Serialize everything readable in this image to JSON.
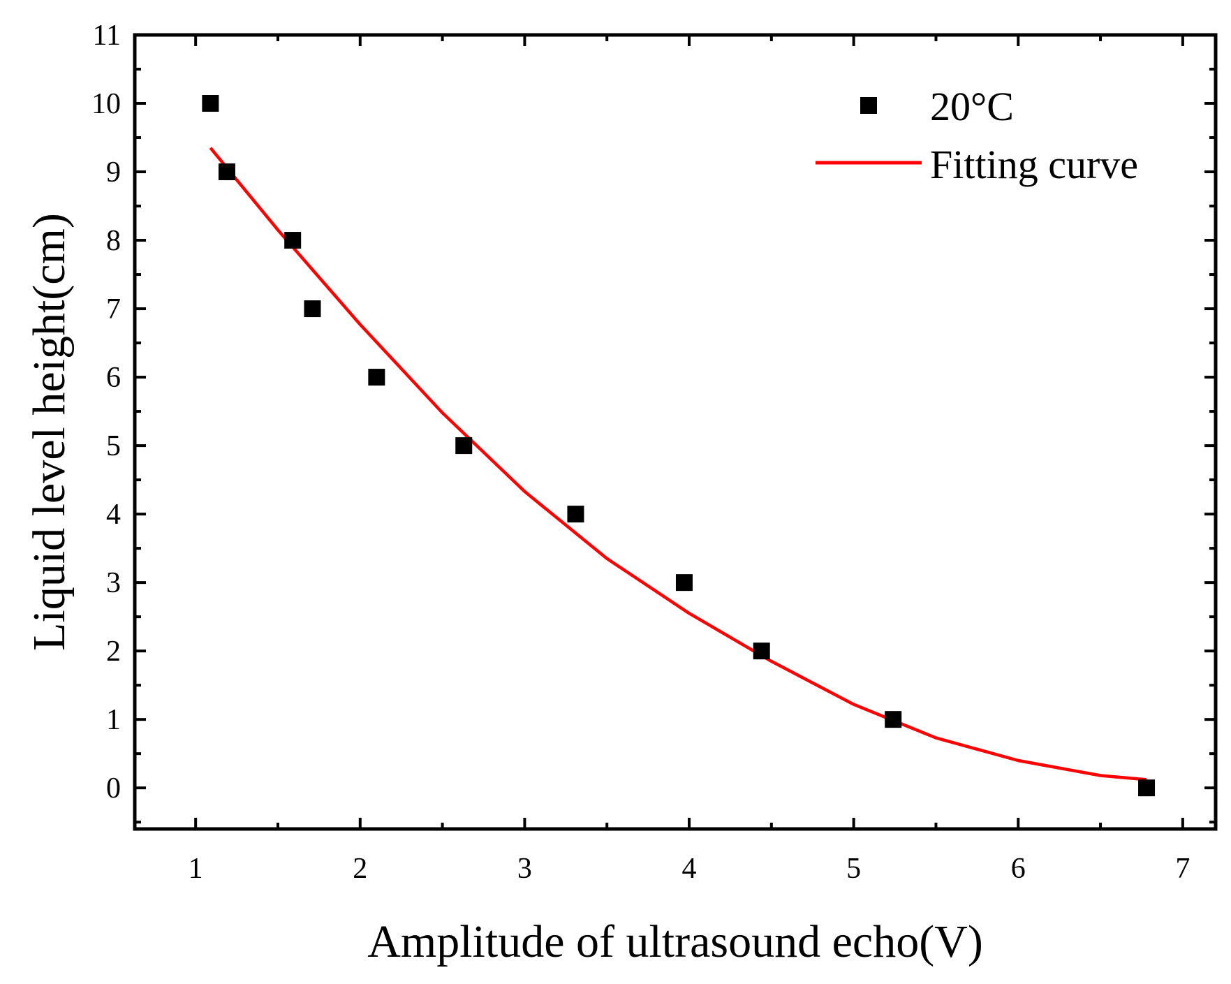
{
  "chart_data": {
    "type": "scatter",
    "title": "",
    "xlabel": "Amplitude of ultrasound echo(V)",
    "ylabel": "Liquid level height(cm)",
    "xlim": [
      0.63,
      7.2
    ],
    "ylim": [
      -0.6,
      11
    ],
    "xticks": [
      1,
      2,
      3,
      4,
      5,
      6,
      7
    ],
    "yticks": [
      0,
      1,
      2,
      3,
      4,
      5,
      6,
      7,
      8,
      9,
      10,
      11
    ],
    "xtick_labels": [
      "1",
      "2",
      "3",
      "4",
      "5",
      "6",
      "7"
    ],
    "ytick_labels": [
      "0",
      "1",
      "2",
      "3",
      "4",
      "5",
      "6",
      "7",
      "8",
      "9",
      "10",
      "11"
    ],
    "grid": false,
    "legend_position": "top-right",
    "series": [
      {
        "name": "20°C",
        "kind": "scatter",
        "marker": "square",
        "color": "#000000",
        "x": [
          1.09,
          1.19,
          1.59,
          1.71,
          2.1,
          2.63,
          3.31,
          3.97,
          4.44,
          5.24,
          6.78
        ],
        "y": [
          10,
          9,
          8,
          7,
          6,
          5,
          4,
          3,
          2,
          1,
          0
        ]
      },
      {
        "name": "Fitting curve",
        "kind": "line",
        "color": "#ff0000",
        "x": [
          1.09,
          1.5,
          2.0,
          2.5,
          3.0,
          3.5,
          4.0,
          4.5,
          5.0,
          5.5,
          6.0,
          6.5,
          6.78
        ],
        "y": [
          9.35,
          8.15,
          6.77,
          5.48,
          4.33,
          3.35,
          2.55,
          1.85,
          1.22,
          0.73,
          0.4,
          0.18,
          0.12
        ]
      }
    ]
  }
}
